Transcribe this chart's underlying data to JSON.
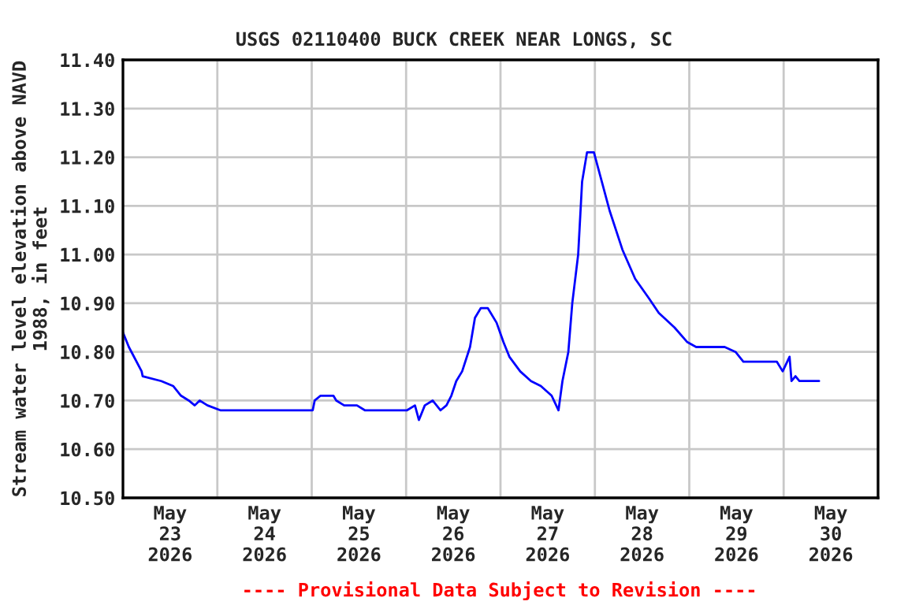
{
  "chart_data": {
    "type": "line",
    "title": "USGS 02110400 BUCK CREEK NEAR LONGS, SC",
    "ylabel": "Stream water level elevation above NAVD\n1988, in feet",
    "annotations": [
      "---- Provisional Data Subject to Revision ----"
    ],
    "x": [
      "2026-05-23T00:00",
      "2026-05-23T01:30",
      "2026-05-23T04:45",
      "2026-05-23T05:00",
      "2026-05-23T09:45",
      "2026-05-23T12:45",
      "2026-05-23T14:45",
      "2026-05-23T16:45",
      "2026-05-23T18:15",
      "2026-05-23T19:30",
      "2026-05-23T21:30",
      "2026-05-24T00:45",
      "2026-05-24T07:30",
      "2026-05-24T12:45",
      "2026-05-24T18:15",
      "2026-05-25T00:15",
      "2026-05-25T00:45",
      "2026-05-25T02:15",
      "2026-05-25T05:30",
      "2026-05-25T06:15",
      "2026-05-25T08:15",
      "2026-05-25T11:30",
      "2026-05-25T13:30",
      "2026-05-25T16:15",
      "2026-05-25T22:45",
      "2026-05-26T00:15",
      "2026-05-26T02:15",
      "2026-05-26T03:15",
      "2026-05-26T04:45",
      "2026-05-26T06:45",
      "2026-05-26T08:45",
      "2026-05-26T10:15",
      "2026-05-26T11:30",
      "2026-05-26T12:45",
      "2026-05-26T14:15",
      "2026-05-26T16:15",
      "2026-05-26T17:30",
      "2026-05-26T19:00",
      "2026-05-26T20:45",
      "2026-05-26T23:00",
      "2026-05-27T00:45",
      "2026-05-27T02:15",
      "2026-05-27T05:00",
      "2026-05-27T07:45",
      "2026-05-27T10:15",
      "2026-05-27T13:00",
      "2026-05-27T14:45",
      "2026-05-27T15:45",
      "2026-05-27T17:15",
      "2026-05-27T18:15",
      "2026-05-27T19:45",
      "2026-05-27T20:45",
      "2026-05-27T22:00",
      "2026-05-27T23:45",
      "2026-05-28T01:45",
      "2026-05-28T03:45",
      "2026-05-28T07:00",
      "2026-05-28T10:15",
      "2026-05-28T13:45",
      "2026-05-28T16:15",
      "2026-05-28T20:15",
      "2026-05-28T23:30",
      "2026-05-29T01:45",
      "2026-05-29T09:00",
      "2026-05-29T11:45",
      "2026-05-29T13:45",
      "2026-05-29T15:45",
      "2026-05-29T22:15",
      "2026-05-29T23:45",
      "2026-05-30T01:30",
      "2026-05-30T02:00",
      "2026-05-30T03:00",
      "2026-05-30T04:00",
      "2026-05-30T05:00",
      "2026-05-30T09:00"
    ],
    "series": [
      {
        "color": "#0000ff",
        "values": [
          10.84,
          10.81,
          10.76,
          10.75,
          10.74,
          10.73,
          10.71,
          10.7,
          10.69,
          10.7,
          10.69,
          10.68,
          10.68,
          10.68,
          10.68,
          10.68,
          10.7,
          10.71,
          10.71,
          10.7,
          10.69,
          10.69,
          10.68,
          10.68,
          10.68,
          10.68,
          10.69,
          10.66,
          10.69,
          10.7,
          10.68,
          10.69,
          10.71,
          10.74,
          10.76,
          10.81,
          10.87,
          10.89,
          10.89,
          10.86,
          10.82,
          10.79,
          10.76,
          10.74,
          10.73,
          10.71,
          10.68,
          10.74,
          10.8,
          10.9,
          11.0,
          11.15,
          11.21,
          11.21,
          11.15,
          11.09,
          11.01,
          10.95,
          10.91,
          10.88,
          10.85,
          10.82,
          10.81,
          10.81,
          10.8,
          10.78,
          10.78,
          10.78,
          10.76,
          10.79,
          10.74,
          10.75,
          10.74,
          10.74,
          10.74
        ]
      }
    ],
    "xlim": [
      "2026-05-23T00:00",
      "2026-05-31T00:00"
    ],
    "xticks": [
      {
        "value": "2026-05-23T12:00",
        "label": "May\n23\n2026"
      },
      {
        "value": "2026-05-24T00:00",
        "label": null
      },
      {
        "value": "2026-05-24T12:00",
        "label": "May\n24\n2026"
      },
      {
        "value": "2026-05-25T00:00",
        "label": null
      },
      {
        "value": "2026-05-25T12:00",
        "label": "May\n25\n2026"
      },
      {
        "value": "2026-05-26T00:00",
        "label": null
      },
      {
        "value": "2026-05-26T12:00",
        "label": "May\n26\n2026"
      },
      {
        "value": "2026-05-27T00:00",
        "label": null
      },
      {
        "value": "2026-05-27T12:00",
        "label": "May\n27\n2026"
      },
      {
        "value": "2026-05-28T00:00",
        "label": null
      },
      {
        "value": "2026-05-28T12:00",
        "label": "May\n28\n2026"
      },
      {
        "value": "2026-05-29T00:00",
        "label": null
      },
      {
        "value": "2026-05-29T12:00",
        "label": "May\n29\n2026"
      },
      {
        "value": "2026-05-30T00:00",
        "label": null
      },
      {
        "value": "2026-05-30T12:00",
        "label": "May\n30\n2026"
      }
    ],
    "ylim": [
      10.5,
      11.4
    ],
    "yticks": [
      {
        "value": 10.5,
        "label": "10.50"
      },
      {
        "value": 10.6,
        "label": "10.60"
      },
      {
        "value": 10.7,
        "label": "10.70"
      },
      {
        "value": 10.8,
        "label": "10.80"
      },
      {
        "value": 10.9,
        "label": "10.90"
      },
      {
        "value": 11.0,
        "label": "11.00"
      },
      {
        "value": 11.1,
        "label": "11.10"
      },
      {
        "value": 11.2,
        "label": "11.20"
      },
      {
        "value": 11.3,
        "label": "11.30"
      },
      {
        "value": 11.4,
        "label": "11.40"
      }
    ],
    "grid": true,
    "legend": false,
    "marker": "none",
    "line_style": "solid"
  }
}
